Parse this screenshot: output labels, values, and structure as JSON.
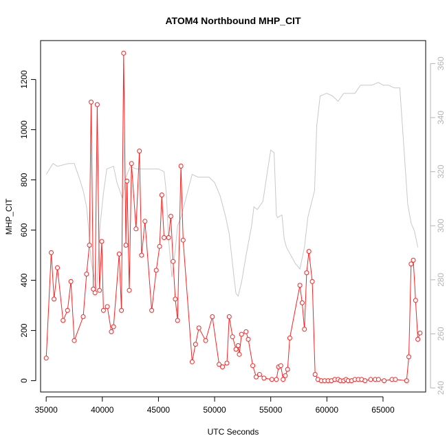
{
  "chart_data": {
    "type": "line",
    "title": "ATOM4 Northbound MHP_CIT",
    "xlabel": "UTC Seconds",
    "ylabel": "MHP_CIT",
    "xlim": [
      34500,
      68800
    ],
    "ylim": [
      -45,
      1355
    ],
    "y2lim": [
      238.5,
      368.5
    ],
    "x_ticks": [
      35000,
      40000,
      45000,
      50000,
      55000,
      60000,
      65000
    ],
    "y_ticks": [
      0,
      200,
      400,
      600,
      800,
      1000,
      1200
    ],
    "y2_ticks": [
      240,
      260,
      280,
      300,
      320,
      340,
      360
    ],
    "grid": false,
    "colors": {
      "primary": "#ff2020",
      "secondary": "#c8c8c8",
      "secondary_axis": "#b4b4b4"
    },
    "series": [
      {
        "axis": "left",
        "style": "line-with-circles",
        "x": [
          35000,
          35450,
          35700,
          36000,
          36500,
          36900,
          37200,
          37500,
          38300,
          38600,
          38850,
          39000,
          39200,
          39350,
          39550,
          39750,
          39950,
          40100,
          40450,
          40800,
          41000,
          41500,
          41700,
          41900,
          42100,
          42200,
          42400,
          42600,
          43000,
          43300,
          43500,
          43800,
          44400,
          44800,
          45100,
          45300,
          45500,
          45900,
          46100,
          46300,
          46500,
          46700,
          47000,
          47200,
          48000,
          48300,
          48600,
          49200,
          49800,
          50400,
          50700,
          51100,
          51300,
          51600,
          51900,
          52100,
          52200,
          52400,
          52800,
          53000,
          53400,
          53700,
          54000,
          54400,
          55100,
          55500,
          55700,
          55900,
          56100,
          56300,
          56500,
          56700,
          57600,
          57800,
          58000,
          58200,
          58400,
          58700,
          58950,
          59200,
          59500,
          59800,
          60100,
          60400,
          60700,
          61000,
          61200,
          61500,
          61700,
          61900,
          62200,
          62500,
          62800,
          63100,
          63400,
          63900,
          64300,
          64600,
          65100,
          65800,
          66100,
          67100,
          67300,
          67500,
          67700,
          67900,
          68100,
          68300
        ],
        "y": [
          90,
          510,
          325,
          450,
          240,
          280,
          395,
          160,
          255,
          425,
          540,
          1110,
          365,
          350,
          1100,
          360,
          555,
          280,
          295,
          195,
          215,
          505,
          280,
          1305,
          540,
          795,
          360,
          865,
          605,
          915,
          500,
          635,
          280,
          440,
          535,
          740,
          570,
          570,
          655,
          475,
          325,
          240,
          855,
          560,
          75,
          145,
          210,
          160,
          255,
          65,
          55,
          70,
          255,
          175,
          125,
          140,
          105,
          185,
          195,
          165,
          60,
          15,
          25,
          10,
          5,
          5,
          55,
          60,
          5,
          20,
          45,
          170,
          380,
          310,
          205,
          430,
          515,
          395,
          25,
          5,
          0,
          0,
          0,
          0,
          5,
          5,
          0,
          0,
          5,
          0,
          0,
          5,
          5,
          5,
          0,
          5,
          5,
          5,
          0,
          5,
          5,
          0,
          95,
          465,
          480,
          320,
          165,
          190
        ]
      },
      {
        "axis": "right",
        "style": "line",
        "x": [
          35000,
          35600,
          36000,
          37000,
          37500,
          38000,
          38300,
          38600,
          38800,
          39000,
          39500,
          39800,
          40100,
          40400,
          41000,
          41300,
          41800,
          42100,
          42500,
          43000,
          44000,
          45000,
          45500,
          45700,
          45900,
          46200,
          46500,
          46700,
          47000,
          47500,
          48000,
          48500,
          49500,
          50000,
          50500,
          51000,
          51300,
          51700,
          51900,
          52100,
          52400,
          52800,
          53300,
          53500,
          53800,
          54300,
          54700,
          55000,
          55300,
          55500,
          55600,
          56000,
          56200,
          56400,
          56800,
          57200,
          57600,
          58000,
          58300,
          58600,
          58900,
          59100,
          59400,
          60000,
          60500,
          61000,
          61500,
          62000,
          62500,
          63000,
          63500,
          64000,
          64600,
          65000,
          65500,
          66000,
          66500,
          67200,
          67500,
          67800,
          68100
        ],
        "y": [
          319,
          323,
          322,
          323,
          323,
          317,
          313,
          307,
          298,
          287,
          276,
          300,
          312,
          321,
          322,
          316,
          310,
          318,
          322,
          321,
          321,
          321,
          320,
          312,
          295,
          281,
          291,
          300,
          303,
          311,
          319,
          318,
          318,
          316,
          311,
          303,
          297,
          282,
          275,
          274,
          279,
          289,
          300,
          307,
          306,
          309,
          320,
          328,
          327,
          304,
          303,
          304,
          295,
          292,
          289,
          286,
          284,
          292,
          303,
          308,
          313,
          337,
          348,
          349,
          348,
          346,
          349,
          349,
          349,
          352,
          352,
          352,
          353,
          352,
          352,
          351,
          351,
          308,
          301,
          298,
          292
        ]
      }
    ]
  }
}
